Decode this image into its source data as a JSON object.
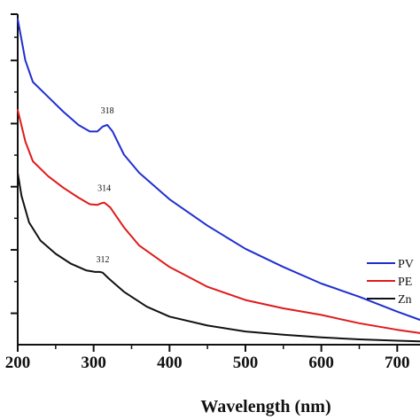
{
  "chart_data": {
    "type": "line",
    "title": "",
    "xlabel": "Wavelength (nm)",
    "ylabel": "",
    "xlim": [
      200,
      730
    ],
    "ylim": [
      0,
      1
    ],
    "x_ticks": [
      "200",
      "300",
      "400",
      "500",
      "600",
      "700"
    ],
    "x_tick_values": [
      200,
      300,
      400,
      500,
      600,
      700
    ],
    "y_tick_values": [
      0.095,
      0.287,
      0.478,
      0.669,
      0.86,
      1.0
    ],
    "grid": false,
    "legend_position": "bottom-right",
    "series": [
      {
        "name": "PV",
        "color": "#1f2fd0",
        "x": [
          200,
          210,
          220,
          240,
          260,
          280,
          295,
          305,
          312,
          318,
          325,
          340,
          360,
          400,
          450,
          500,
          550,
          600,
          650,
          700,
          730
        ],
        "y": [
          0.985,
          0.86,
          0.795,
          0.75,
          0.705,
          0.665,
          0.645,
          0.645,
          0.66,
          0.665,
          0.645,
          0.575,
          0.52,
          0.44,
          0.36,
          0.29,
          0.235,
          0.185,
          0.145,
          0.1,
          0.075
        ]
      },
      {
        "name": "PE",
        "color": "#e01a1a",
        "x": [
          200,
          210,
          220,
          240,
          260,
          280,
          295,
          305,
          310,
          314,
          322,
          340,
          360,
          400,
          450,
          500,
          550,
          600,
          620,
          650,
          700,
          730
        ],
        "y": [
          0.71,
          0.615,
          0.555,
          0.51,
          0.475,
          0.445,
          0.425,
          0.423,
          0.428,
          0.43,
          0.415,
          0.355,
          0.3,
          0.235,
          0.175,
          0.135,
          0.11,
          0.09,
          0.08,
          0.065,
          0.045,
          0.035
        ]
      },
      {
        "name": "Zn",
        "color": "#111111",
        "x": [
          200,
          205,
          215,
          230,
          250,
          270,
          290,
          302,
          308,
          312,
          320,
          340,
          370,
          400,
          450,
          500,
          550,
          600,
          650,
          700,
          730
        ],
        "y": [
          0.52,
          0.45,
          0.37,
          0.315,
          0.275,
          0.245,
          0.225,
          0.22,
          0.22,
          0.218,
          0.2,
          0.16,
          0.115,
          0.085,
          0.058,
          0.04,
          0.03,
          0.022,
          0.016,
          0.012,
          0.01
        ]
      }
    ],
    "annotations": [
      {
        "text": "318",
        "x": 318,
        "y": 0.7
      },
      {
        "text": "314",
        "x": 314,
        "y": 0.465
      },
      {
        "text": "312",
        "x": 312,
        "y": 0.25
      }
    ],
    "legend_entries": [
      "PV",
      "PE",
      "Zn"
    ]
  }
}
